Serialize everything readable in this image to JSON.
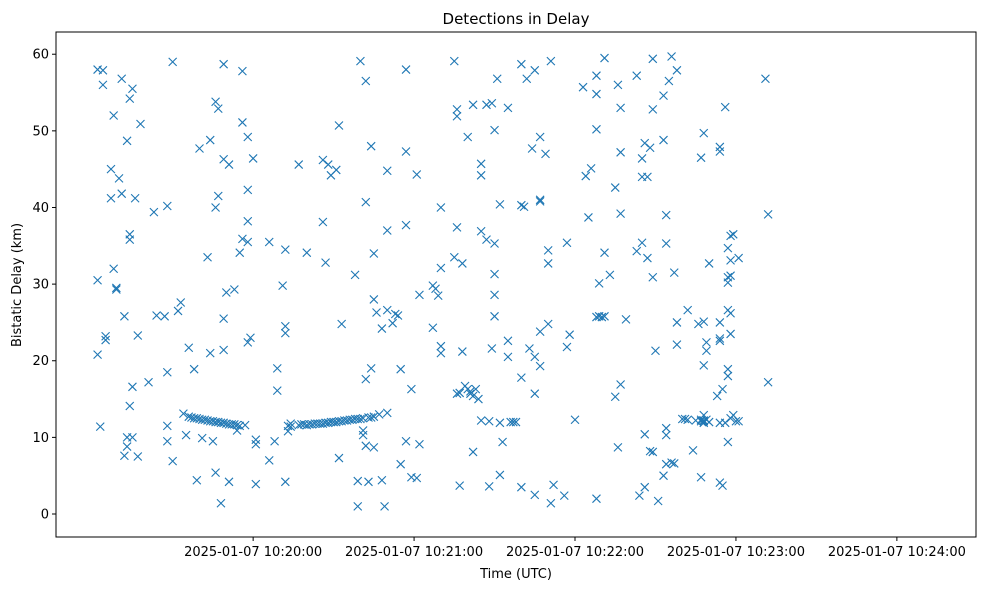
{
  "chart_data": {
    "type": "scatter",
    "title": "Detections in Delay",
    "xlabel": "Time (UTC)",
    "ylabel": "Bistatic Delay (km)",
    "marker": "x",
    "color": "#1f77b4",
    "grid": false,
    "x_unit": "seconds after 2025-01-07 10:19:00 UTC",
    "xlim": [
      -13.5,
      329.5
    ],
    "ylim": [
      -3,
      62.9
    ],
    "x_ticks": [
      {
        "value": 60,
        "label": "2025-01-07 10:20:00"
      },
      {
        "value": 120,
        "label": "2025-01-07 10:21:00"
      },
      {
        "value": 180,
        "label": "2025-01-07 10:22:00"
      },
      {
        "value": 240,
        "label": "2025-01-07 10:23:00"
      },
      {
        "value": 300,
        "label": "2025-01-07 10:24:00"
      }
    ],
    "y_ticks": [
      {
        "value": 0,
        "label": "0"
      },
      {
        "value": 10,
        "label": "10"
      },
      {
        "value": 20,
        "label": "20"
      },
      {
        "value": 30,
        "label": "30"
      },
      {
        "value": 40,
        "label": "40"
      },
      {
        "value": 50,
        "label": "50"
      },
      {
        "value": 60,
        "label": "60"
      }
    ],
    "points": [
      [
        2,
        58
      ],
      [
        2,
        30.5
      ],
      [
        2,
        20.8
      ],
      [
        3,
        11.4
      ],
      [
        4,
        57.9
      ],
      [
        4,
        56
      ],
      [
        5,
        23.2
      ],
      [
        5,
        22.7
      ],
      [
        7,
        45
      ],
      [
        7,
        41.2
      ],
      [
        8,
        32
      ],
      [
        8,
        52
      ],
      [
        9,
        29.5
      ],
      [
        9,
        29.3
      ],
      [
        10,
        43.8
      ],
      [
        11,
        56.8
      ],
      [
        11,
        41.8
      ],
      [
        12,
        25.8
      ],
      [
        12,
        7.6
      ],
      [
        13,
        8.8
      ],
      [
        13,
        10
      ],
      [
        13,
        48.7
      ],
      [
        14,
        54.2
      ],
      [
        14,
        35.8
      ],
      [
        14,
        36.5
      ],
      [
        14,
        14.1
      ],
      [
        15,
        55.5
      ],
      [
        15,
        16.6
      ],
      [
        15,
        10
      ],
      [
        16,
        41.2
      ],
      [
        17,
        23.3
      ],
      [
        17,
        7.5
      ],
      [
        18,
        50.9
      ],
      [
        21,
        17.2
      ],
      [
        23,
        39.4
      ],
      [
        24,
        25.9
      ],
      [
        27,
        25.8
      ],
      [
        28,
        9.5
      ],
      [
        28,
        11.5
      ],
      [
        28,
        40.2
      ],
      [
        28,
        18.5
      ],
      [
        30,
        59
      ],
      [
        30,
        6.9
      ],
      [
        32,
        26.5
      ],
      [
        33,
        27.6
      ],
      [
        34,
        13.1
      ],
      [
        35,
        10.3
      ],
      [
        36,
        21.7
      ],
      [
        36,
        12.7
      ],
      [
        37,
        12.6
      ],
      [
        38,
        12.5
      ],
      [
        38,
        18.9
      ],
      [
        39,
        12.5
      ],
      [
        39,
        4.4
      ],
      [
        40,
        47.7
      ],
      [
        40,
        12.4
      ],
      [
        41,
        9.9
      ],
      [
        41,
        12.3
      ],
      [
        42,
        12.3
      ],
      [
        43,
        33.5
      ],
      [
        43,
        12.2
      ],
      [
        44,
        21
      ],
      [
        44,
        48.8
      ],
      [
        44,
        12.1
      ],
      [
        45,
        12.1
      ],
      [
        45,
        9.5
      ],
      [
        46,
        53.8
      ],
      [
        46,
        40
      ],
      [
        46,
        5.4
      ],
      [
        46,
        12
      ],
      [
        47,
        41.5
      ],
      [
        47,
        52.9
      ],
      [
        47,
        12
      ],
      [
        48,
        1.4
      ],
      [
        48,
        11.9
      ],
      [
        49,
        46.3
      ],
      [
        49,
        21.4
      ],
      [
        49,
        58.7
      ],
      [
        49,
        25.5
      ],
      [
        49,
        11.9
      ],
      [
        50,
        28.9
      ],
      [
        50,
        11.8
      ],
      [
        51,
        4.2
      ],
      [
        51,
        45.6
      ],
      [
        51,
        11.7
      ],
      [
        52,
        11.7
      ],
      [
        53,
        29.3
      ],
      [
        53,
        11.7
      ],
      [
        54,
        11.6
      ],
      [
        54,
        10.9
      ],
      [
        55,
        11.5
      ],
      [
        55,
        34.1
      ],
      [
        56,
        51.1
      ],
      [
        56,
        57.8
      ],
      [
        56,
        35.9
      ],
      [
        57,
        11.6
      ],
      [
        58,
        35.5
      ],
      [
        58,
        49.2
      ],
      [
        58,
        38.2
      ],
      [
        58,
        42.3
      ],
      [
        58,
        22.4
      ],
      [
        59,
        23
      ],
      [
        60,
        46.4
      ],
      [
        61,
        9.1
      ],
      [
        61,
        3.9
      ],
      [
        61,
        9.7
      ],
      [
        66,
        35.5
      ],
      [
        66,
        7
      ],
      [
        68,
        9.5
      ],
      [
        69,
        19
      ],
      [
        69,
        16.1
      ],
      [
        71,
        29.8
      ],
      [
        72,
        4.2
      ],
      [
        72,
        23.6
      ],
      [
        72,
        24.5
      ],
      [
        72,
        34.5
      ],
      [
        73,
        11.5
      ],
      [
        73,
        10.8
      ],
      [
        74,
        11.4
      ],
      [
        74,
        11.8
      ],
      [
        77,
        45.6
      ],
      [
        77,
        11.6
      ],
      [
        78,
        11.7
      ],
      [
        79,
        11.7
      ],
      [
        80,
        11.6
      ],
      [
        80,
        34.1
      ],
      [
        81,
        11.7
      ],
      [
        82,
        11.7
      ],
      [
        83,
        11.8
      ],
      [
        84,
        11.8
      ],
      [
        85,
        11.8
      ],
      [
        86,
        11.8
      ],
      [
        86,
        46.2
      ],
      [
        86,
        38.1
      ],
      [
        87,
        11.9
      ],
      [
        87,
        32.8
      ],
      [
        88,
        11.9
      ],
      [
        88,
        45.6
      ],
      [
        89,
        44.2
      ],
      [
        89,
        12
      ],
      [
        90,
        12
      ],
      [
        91,
        44.9
      ],
      [
        91,
        12
      ],
      [
        92,
        12.1
      ],
      [
        92,
        50.7
      ],
      [
        92,
        7.3
      ],
      [
        93,
        24.8
      ],
      [
        93,
        12.1
      ],
      [
        94,
        12.2
      ],
      [
        95,
        12.2
      ],
      [
        96,
        12.3
      ],
      [
        97,
        12.3
      ],
      [
        98,
        12.4
      ],
      [
        98,
        31.2
      ],
      [
        99,
        1
      ],
      [
        99,
        4.3
      ],
      [
        99,
        12.4
      ],
      [
        100,
        59.1
      ],
      [
        100,
        12.4
      ],
      [
        101,
        12.5
      ],
      [
        101,
        10.3
      ],
      [
        101,
        10.9
      ],
      [
        102,
        17.6
      ],
      [
        102,
        8.9
      ],
      [
        102,
        40.7
      ],
      [
        102,
        56.5
      ],
      [
        103,
        12.6
      ],
      [
        103,
        4.2
      ],
      [
        104,
        48
      ],
      [
        104,
        12.6
      ],
      [
        104,
        19
      ],
      [
        105,
        8.7
      ],
      [
        105,
        12.7
      ],
      [
        105,
        34
      ],
      [
        105,
        28
      ],
      [
        106,
        26.3
      ],
      [
        107,
        13
      ],
      [
        108,
        4.4
      ],
      [
        108,
        24.2
      ],
      [
        109,
        1
      ],
      [
        110,
        13.2
      ],
      [
        110,
        26.6
      ],
      [
        110,
        37
      ],
      [
        110,
        44.8
      ],
      [
        112,
        24.9
      ],
      [
        113,
        26.1
      ],
      [
        114,
        25.9
      ],
      [
        115,
        6.5
      ],
      [
        115,
        18.9
      ],
      [
        117,
        58
      ],
      [
        117,
        47.3
      ],
      [
        117,
        37.7
      ],
      [
        117,
        9.5
      ],
      [
        119,
        4.8
      ],
      [
        119,
        16.3
      ],
      [
        121,
        4.7
      ],
      [
        121,
        44.3
      ],
      [
        122,
        28.6
      ],
      [
        122,
        9.1
      ],
      [
        127,
        29.8
      ],
      [
        127,
        24.3
      ],
      [
        128,
        29.4
      ],
      [
        129,
        28.5
      ],
      [
        130,
        21.9
      ],
      [
        130,
        21
      ],
      [
        130,
        32.1
      ],
      [
        130,
        40
      ],
      [
        135,
        33.5
      ],
      [
        135,
        59.1
      ],
      [
        136,
        37.4
      ],
      [
        136,
        51.9
      ],
      [
        136,
        52.8
      ],
      [
        136,
        15.7
      ],
      [
        137,
        15.8
      ],
      [
        137,
        3.7
      ],
      [
        138,
        32.7
      ],
      [
        138,
        21.2
      ],
      [
        139,
        16.7
      ],
      [
        140,
        49.2
      ],
      [
        140,
        16.3
      ],
      [
        141,
        15.7
      ],
      [
        141,
        16
      ],
      [
        142,
        15.4
      ],
      [
        142,
        8.1
      ],
      [
        142,
        53.4
      ],
      [
        143,
        16.3
      ],
      [
        144,
        15
      ],
      [
        145,
        45.7
      ],
      [
        145,
        44.2
      ],
      [
        145,
        36.9
      ],
      [
        145,
        12.2
      ],
      [
        147,
        53.4
      ],
      [
        147,
        35.8
      ],
      [
        148,
        3.6
      ],
      [
        148,
        12.1
      ],
      [
        149,
        21.6
      ],
      [
        149,
        53.6
      ],
      [
        150,
        50.1
      ],
      [
        150,
        35.3
      ],
      [
        150,
        31.3
      ],
      [
        150,
        28.6
      ],
      [
        150,
        25.8
      ],
      [
        151,
        56.8
      ],
      [
        152,
        5.1
      ],
      [
        152,
        40.4
      ],
      [
        152,
        11.9
      ],
      [
        153,
        9.4
      ],
      [
        155,
        22.6
      ],
      [
        155,
        53
      ],
      [
        155,
        20.5
      ],
      [
        156,
        12
      ],
      [
        157,
        12
      ],
      [
        158,
        12
      ],
      [
        160,
        40.3
      ],
      [
        160,
        58.7
      ],
      [
        160,
        17.8
      ],
      [
        160,
        3.5
      ],
      [
        161,
        40.1
      ],
      [
        162,
        56.8
      ],
      [
        163,
        21.6
      ],
      [
        164,
        47.7
      ],
      [
        165,
        15.7
      ],
      [
        165,
        2.5
      ],
      [
        165,
        20.5
      ],
      [
        165,
        57.9
      ],
      [
        167,
        40.8
      ],
      [
        167,
        49.2
      ],
      [
        167,
        41
      ],
      [
        167,
        19.3
      ],
      [
        167,
        23.8
      ],
      [
        169,
        47
      ],
      [
        170,
        32.7
      ],
      [
        170,
        34.4
      ],
      [
        170,
        24.8
      ],
      [
        171,
        1.4
      ],
      [
        171,
        59.1
      ],
      [
        172,
        3.8
      ],
      [
        176,
        2.4
      ],
      [
        177,
        35.4
      ],
      [
        177,
        21.8
      ],
      [
        178,
        23.4
      ],
      [
        180,
        12.3
      ],
      [
        183,
        55.7
      ],
      [
        184,
        44.1
      ],
      [
        185,
        38.7
      ],
      [
        186,
        45.1
      ],
      [
        188,
        57.2
      ],
      [
        188,
        54.8
      ],
      [
        188,
        50.2
      ],
      [
        188,
        2
      ],
      [
        188,
        25.7
      ],
      [
        189,
        25.8
      ],
      [
        189,
        30.1
      ],
      [
        190,
        25.7
      ],
      [
        191,
        59.5
      ],
      [
        191,
        34.1
      ],
      [
        191,
        25.8
      ],
      [
        193,
        31.2
      ],
      [
        195,
        42.6
      ],
      [
        195,
        15.3
      ],
      [
        196,
        56
      ],
      [
        196,
        8.7
      ],
      [
        197,
        53
      ],
      [
        197,
        47.2
      ],
      [
        197,
        39.2
      ],
      [
        197,
        16.9
      ],
      [
        199,
        25.4
      ],
      [
        203,
        57.2
      ],
      [
        203,
        34.3
      ],
      [
        204,
        2.4
      ],
      [
        205,
        46.4
      ],
      [
        205,
        44
      ],
      [
        205,
        35.4
      ],
      [
        206,
        10.4
      ],
      [
        206,
        48.4
      ],
      [
        206,
        3.5
      ],
      [
        207,
        44
      ],
      [
        207,
        33.4
      ],
      [
        208,
        47.8
      ],
      [
        208,
        8.2
      ],
      [
        209,
        59.4
      ],
      [
        209,
        52.8
      ],
      [
        209,
        30.9
      ],
      [
        209,
        8.1
      ],
      [
        210,
        21.3
      ],
      [
        211,
        1.7
      ],
      [
        213,
        54.6
      ],
      [
        213,
        48.8
      ],
      [
        213,
        5
      ],
      [
        214,
        39
      ],
      [
        214,
        35.3
      ],
      [
        214,
        10.3
      ],
      [
        214,
        11.2
      ],
      [
        214,
        6.5
      ],
      [
        215,
        56.5
      ],
      [
        216,
        59.7
      ],
      [
        216,
        6.7
      ],
      [
        217,
        31.5
      ],
      [
        217,
        6.6
      ],
      [
        218,
        57.9
      ],
      [
        218,
        25
      ],
      [
        218,
        22.1
      ],
      [
        220,
        12.4
      ],
      [
        221,
        12.4
      ],
      [
        222,
        26.6
      ],
      [
        222,
        12.3
      ],
      [
        224,
        8.3
      ],
      [
        225,
        12.2
      ],
      [
        226,
        24.8
      ],
      [
        227,
        12.1
      ],
      [
        227,
        4.8
      ],
      [
        227,
        46.5
      ],
      [
        227,
        12.3
      ],
      [
        228,
        12.2
      ],
      [
        228,
        19.4
      ],
      [
        228,
        12.1
      ],
      [
        228,
        12.9
      ],
      [
        228,
        11.9
      ],
      [
        228,
        25.1
      ],
      [
        228,
        49.7
      ],
      [
        229,
        12.3
      ],
      [
        229,
        22.4
      ],
      [
        229,
        21.3
      ],
      [
        230,
        32.7
      ],
      [
        230,
        12
      ],
      [
        233,
        15.4
      ],
      [
        234,
        47.9
      ],
      [
        234,
        47.3
      ],
      [
        234,
        22.9
      ],
      [
        234,
        25
      ],
      [
        234,
        22.6
      ],
      [
        234,
        11.9
      ],
      [
        234,
        4.1
      ],
      [
        235,
        3.7
      ],
      [
        235,
        16.3
      ],
      [
        236,
        53.1
      ],
      [
        236,
        11.9
      ],
      [
        237,
        30.9
      ],
      [
        237,
        30.2
      ],
      [
        237,
        26.6
      ],
      [
        237,
        34.7
      ],
      [
        237,
        9.4
      ],
      [
        237,
        18.9
      ],
      [
        237,
        18
      ],
      [
        238,
        23.5
      ],
      [
        238,
        33.1
      ],
      [
        238,
        31.1
      ],
      [
        238,
        36.3
      ],
      [
        238,
        26.2
      ],
      [
        238,
        12.5
      ],
      [
        239,
        36.5
      ],
      [
        239,
        12.9
      ],
      [
        240,
        12.1
      ],
      [
        241,
        33.4
      ],
      [
        241,
        12.1
      ],
      [
        251,
        56.8
      ],
      [
        252,
        39.1
      ],
      [
        252,
        17.2
      ]
    ]
  }
}
